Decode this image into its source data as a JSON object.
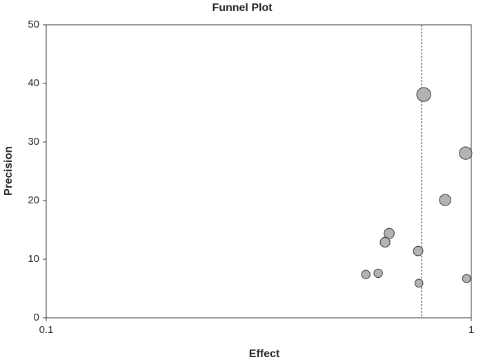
{
  "chart_data": {
    "type": "scatter",
    "title": "Funnel Plot",
    "x_label": "Effect",
    "y_label": "Precision",
    "log_x": true,
    "xlim": [
      0.1,
      1
    ],
    "xticks": [
      0.1,
      1
    ],
    "ylim": [
      0,
      50
    ],
    "yticks": [
      0,
      10,
      20,
      30,
      40,
      50
    ],
    "grid": false,
    "reference_x": 0.764,
    "color": "#b3b3b3",
    "x": [
      0.773,
      0.97,
      0.868,
      0.641,
      0.627,
      0.75,
      0.565,
      0.604,
      0.753,
      0.975
    ],
    "values": [
      38.1,
      28.1,
      20.1,
      14.4,
      12.9,
      11.4,
      7.4,
      7.6,
      5.9,
      6.7
    ]
  }
}
